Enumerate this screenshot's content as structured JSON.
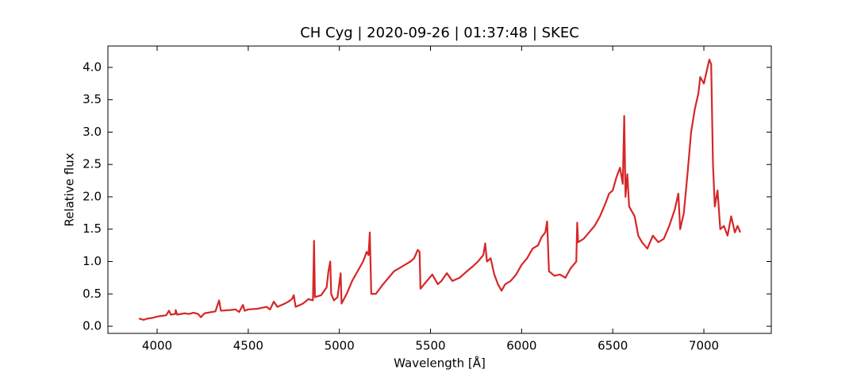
{
  "chart_data": {
    "type": "line",
    "title": "CH Cyg | 2020-09-26 | 01:37:48 | SKEC",
    "x_label": "Wavelength [Å]",
    "y_label": "Relative flux",
    "color": "#d62728",
    "x": [
      3900,
      3925,
      3950,
      3975,
      4000,
      4025,
      4050,
      4065,
      4075,
      4100,
      4102,
      4110,
      4150,
      4175,
      4200,
      4225,
      4240,
      4260,
      4300,
      4320,
      4340,
      4350,
      4400,
      4430,
      4450,
      4471,
      4480,
      4500,
      4550,
      4600,
      4620,
      4640,
      4660,
      4700,
      4720,
      4740,
      4750,
      4760,
      4800,
      4830,
      4855,
      4861,
      4866,
      4900,
      4930,
      4940,
      4950,
      4955,
      4970,
      4990,
      5007,
      5012,
      5040,
      5070,
      5100,
      5130,
      5150,
      5160,
      5167,
      5175,
      5200,
      5240,
      5270,
      5300,
      5330,
      5360,
      5390,
      5410,
      5430,
      5440,
      5445,
      5480,
      5510,
      5540,
      5560,
      5590,
      5620,
      5660,
      5700,
      5730,
      5760,
      5790,
      5800,
      5810,
      5830,
      5850,
      5870,
      5890,
      5910,
      5940,
      5970,
      6000,
      6030,
      6060,
      6090,
      6110,
      6130,
      6140,
      6150,
      6180,
      6210,
      6240,
      6270,
      6300,
      6305,
      6310,
      6340,
      6370,
      6400,
      6430,
      6460,
      6480,
      6500,
      6520,
      6540,
      6555,
      6563,
      6570,
      6580,
      6590,
      6620,
      6640,
      6660,
      6690,
      6720,
      6750,
      6780,
      6810,
      6840,
      6860,
      6870,
      6890,
      6910,
      6930,
      6950,
      6970,
      6980,
      7000,
      7020,
      7030,
      7040,
      7050,
      7060,
      7075,
      7090,
      7110,
      7130,
      7150,
      7170,
      7185,
      7200
    ],
    "values": [
      0.12,
      0.1,
      0.12,
      0.13,
      0.15,
      0.16,
      0.17,
      0.24,
      0.18,
      0.19,
      0.25,
      0.18,
      0.2,
      0.19,
      0.21,
      0.19,
      0.14,
      0.2,
      0.22,
      0.23,
      0.4,
      0.24,
      0.25,
      0.26,
      0.22,
      0.33,
      0.24,
      0.26,
      0.27,
      0.3,
      0.26,
      0.38,
      0.3,
      0.35,
      0.38,
      0.42,
      0.48,
      0.3,
      0.35,
      0.42,
      0.4,
      1.32,
      0.45,
      0.48,
      0.6,
      0.85,
      1.0,
      0.5,
      0.4,
      0.45,
      0.82,
      0.35,
      0.5,
      0.7,
      0.85,
      1.0,
      1.15,
      1.1,
      1.45,
      0.5,
      0.5,
      0.65,
      0.75,
      0.85,
      0.9,
      0.95,
      1.0,
      1.05,
      1.18,
      1.15,
      0.58,
      0.7,
      0.8,
      0.65,
      0.7,
      0.82,
      0.7,
      0.75,
      0.85,
      0.92,
      1.0,
      1.1,
      1.28,
      1.0,
      1.05,
      0.8,
      0.65,
      0.55,
      0.65,
      0.7,
      0.8,
      0.95,
      1.05,
      1.2,
      1.25,
      1.38,
      1.45,
      1.62,
      0.85,
      0.78,
      0.8,
      0.75,
      0.9,
      1.0,
      1.6,
      1.3,
      1.35,
      1.45,
      1.55,
      1.7,
      1.9,
      2.05,
      2.1,
      2.3,
      2.45,
      2.2,
      3.25,
      2.0,
      2.35,
      1.85,
      1.7,
      1.4,
      1.3,
      1.2,
      1.4,
      1.3,
      1.35,
      1.55,
      1.8,
      2.05,
      1.5,
      1.75,
      2.35,
      3.0,
      3.35,
      3.6,
      3.85,
      3.75,
      4.0,
      4.12,
      4.05,
      2.5,
      1.85,
      2.1,
      1.5,
      1.55,
      1.4,
      1.7,
      1.45,
      1.55,
      1.45
    ],
    "xlim": [
      3730,
      7370
    ],
    "ylim": [
      -0.11,
      4.33
    ],
    "xticks": [
      4000,
      4500,
      5000,
      5500,
      6000,
      6500,
      7000
    ],
    "yticks": [
      {
        "value": 0,
        "label": "0.0"
      },
      0.5,
      {
        "value": 1,
        "label": "1.0"
      },
      1.5,
      {
        "value": 2,
        "label": "2.0"
      },
      2.5,
      {
        "value": 3,
        "label": "3.0"
      },
      3.5,
      {
        "value": 4,
        "label": "4.0"
      }
    ],
    "grid": false
  }
}
